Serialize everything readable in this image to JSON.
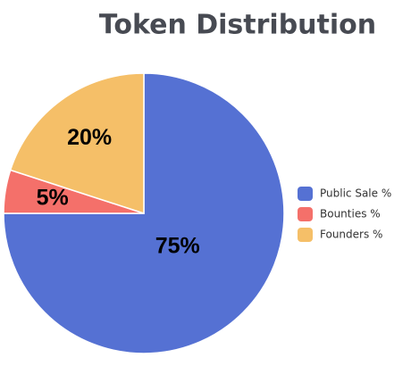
{
  "chart_data": {
    "type": "pie",
    "title": "Token Distribution",
    "categories": [
      "Public Sale %",
      "Bounties %",
      "Founders %"
    ],
    "values": [
      75,
      5,
      20
    ],
    "value_labels": [
      "75%",
      "5%",
      "20%"
    ],
    "colors": [
      "#5571d3",
      "#f4706a",
      "#f5bf68"
    ],
    "legend": "right"
  }
}
